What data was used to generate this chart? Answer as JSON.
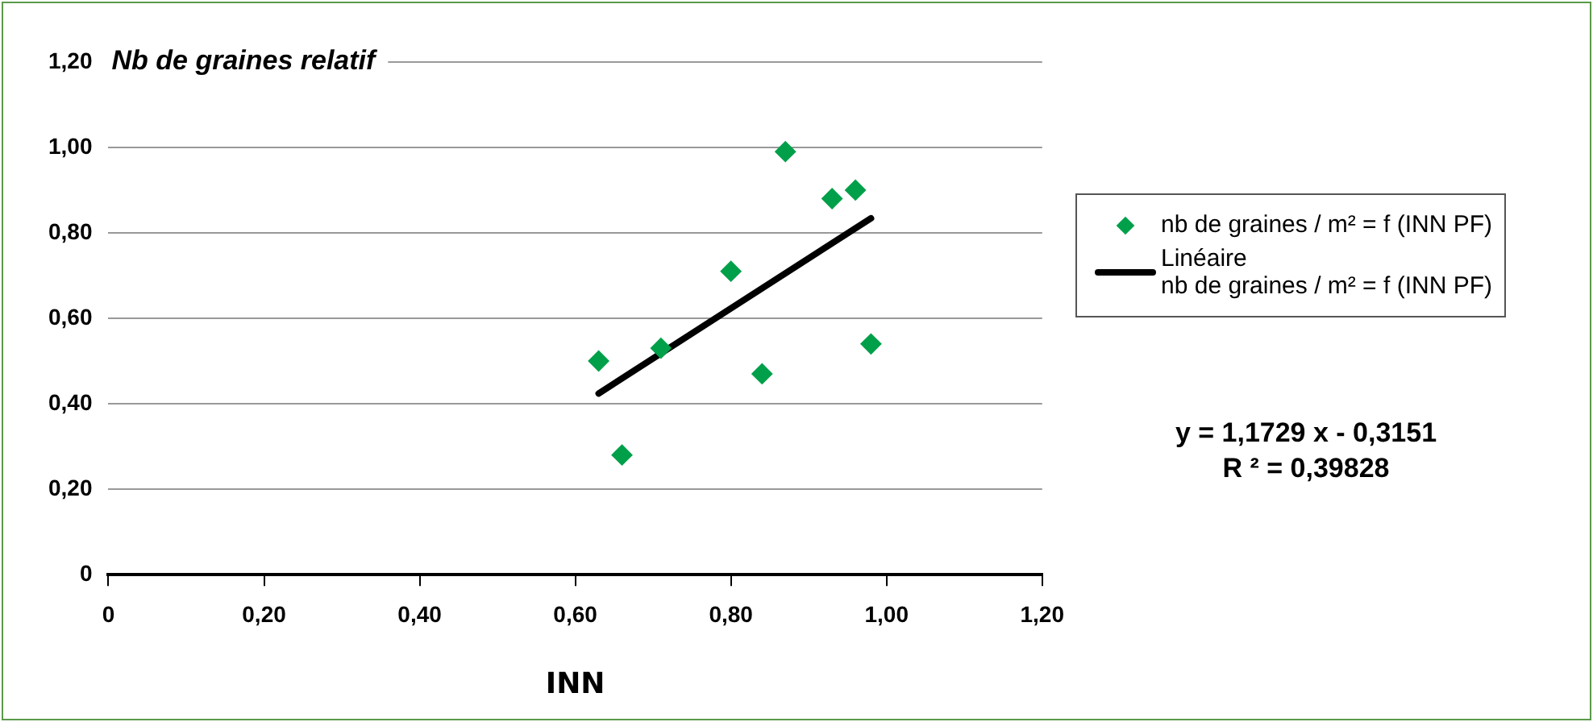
{
  "chart_data": {
    "type": "scatter",
    "ylabel": "Nb de graines relatif",
    "xlabel": "INN",
    "xlim": [
      0,
      1.2
    ],
    "xticks": [
      0,
      {
        "value": 0.2,
        "label": "0,20"
      },
      {
        "value": 0.4,
        "label": "0,40"
      },
      {
        "value": 0.6,
        "label": "0,60"
      },
      {
        "value": 0.8,
        "label": "0,80"
      },
      {
        "value": 1,
        "label": "1,00"
      },
      {
        "value": 1.2,
        "label": "1,20"
      }
    ],
    "ylim": [
      0,
      1.2
    ],
    "yticks": [
      0,
      {
        "value": 0.2,
        "label": "0,20"
      },
      {
        "value": 0.4,
        "label": "0,40"
      },
      {
        "value": 0.6,
        "label": "0,60"
      },
      {
        "value": 0.8,
        "label": "0,80"
      },
      {
        "value": 1,
        "label": "1,00"
      },
      {
        "value": 1.2,
        "label": "1,20"
      }
    ],
    "grid": "y",
    "legend": "right",
    "series": [
      {
        "name": "nb de graines / m² = f (INN PF)",
        "color": "#00a04a",
        "marker": "diamond",
        "x": [
          0.63,
          0.66,
          0.71,
          0.8,
          0.84,
          0.87,
          0.93,
          0.96,
          0.98
        ],
        "values": [
          0.5,
          0.28,
          0.53,
          0.71,
          0.47,
          0.99,
          0.88,
          0.9,
          0.54
        ]
      },
      {
        "type": "line",
        "name": "Linéaire\nnb de graines / m² = f (INN PF)",
        "color": "#000000",
        "marker": "none",
        "x": [
          0.63,
          0.98
        ],
        "values": [
          0.424,
          0.834
        ]
      }
    ],
    "annotations": [
      "y = 1,1729 x - 0,3151",
      "R ² = 0,39828"
    ]
  }
}
